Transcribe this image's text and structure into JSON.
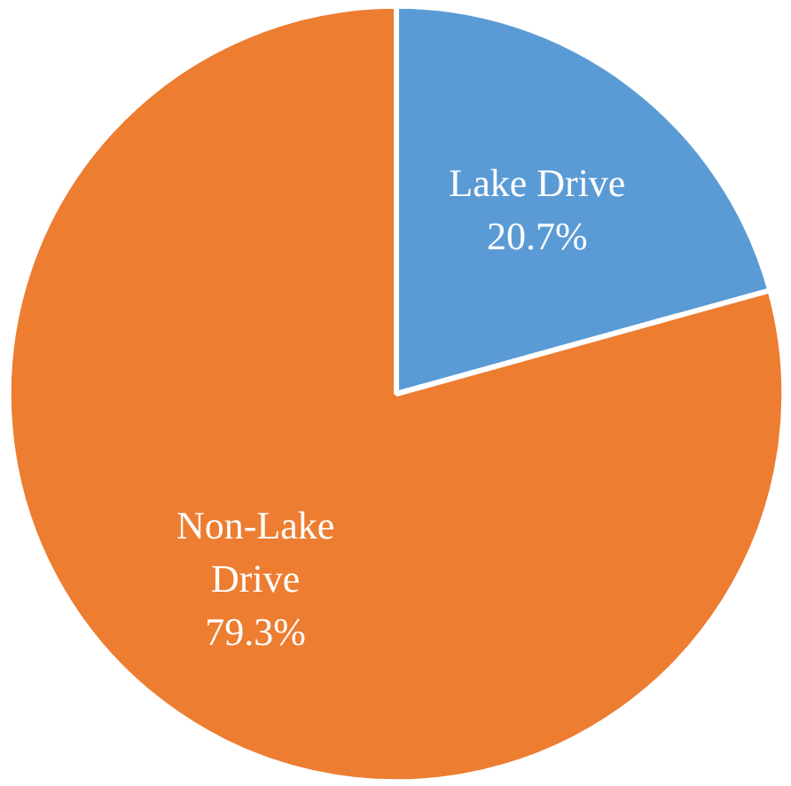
{
  "chart_data": {
    "type": "pie",
    "categories": [
      "Lake Drive",
      "Non-Lake Drive"
    ],
    "values": [
      20.7,
      79.3
    ],
    "colors": [
      "#5b9bd5",
      "#ed7d31"
    ],
    "value_labels": [
      "20.7%",
      "79.3%"
    ]
  }
}
